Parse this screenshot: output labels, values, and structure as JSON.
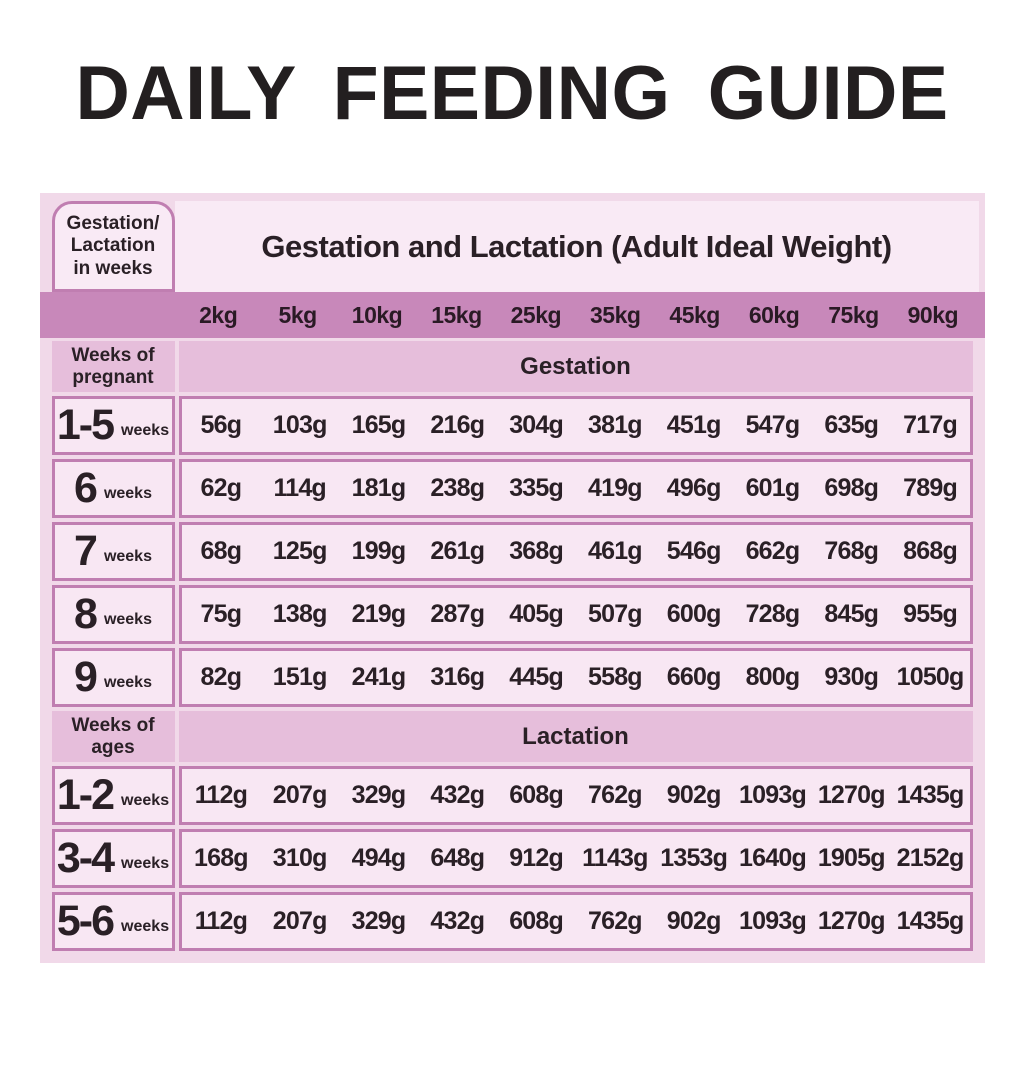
{
  "page_title": "DAILY FEEDING GUIDE",
  "table": {
    "corner_lines": [
      "Gestation/",
      "Lactation",
      "in weeks"
    ],
    "header_title": "Gestation and Lactation (Adult Ideal Weight)",
    "weight_columns": [
      "2kg",
      "5kg",
      "10kg",
      "15kg",
      "25kg",
      "35kg",
      "45kg",
      "60kg",
      "75kg",
      "90kg"
    ],
    "sections": [
      {
        "row_header_lines": [
          "Weeks of",
          "pregnant"
        ],
        "band_label": "Gestation",
        "rows": [
          {
            "weeks": "1-5",
            "unit": "weeks",
            "values": [
              "56g",
              "103g",
              "165g",
              "216g",
              "304g",
              "381g",
              "451g",
              "547g",
              "635g",
              "717g"
            ]
          },
          {
            "weeks": "6",
            "unit": "weeks",
            "values": [
              "62g",
              "114g",
              "181g",
              "238g",
              "335g",
              "419g",
              "496g",
              "601g",
              "698g",
              "789g"
            ]
          },
          {
            "weeks": "7",
            "unit": "weeks",
            "values": [
              "68g",
              "125g",
              "199g",
              "261g",
              "368g",
              "461g",
              "546g",
              "662g",
              "768g",
              "868g"
            ]
          },
          {
            "weeks": "8",
            "unit": "weeks",
            "values": [
              "75g",
              "138g",
              "219g",
              "287g",
              "405g",
              "507g",
              "600g",
              "728g",
              "845g",
              "955g"
            ]
          },
          {
            "weeks": "9",
            "unit": "weeks",
            "values": [
              "82g",
              "151g",
              "241g",
              "316g",
              "445g",
              "558g",
              "660g",
              "800g",
              "930g",
              "1050g"
            ]
          }
        ]
      },
      {
        "row_header_lines": [
          "Weeks of",
          "ages"
        ],
        "band_label": "Lactation",
        "rows": [
          {
            "weeks": "1-2",
            "unit": "weeks",
            "values": [
              "112g",
              "207g",
              "329g",
              "432g",
              "608g",
              "762g",
              "902g",
              "1093g",
              "1270g",
              "1435g"
            ]
          },
          {
            "weeks": "3-4",
            "unit": "weeks",
            "values": [
              "168g",
              "310g",
              "494g",
              "648g",
              "912g",
              "1143g",
              "1353g",
              "1640g",
              "1905g",
              "2152g"
            ]
          },
          {
            "weeks": "5-6",
            "unit": "weeks",
            "values": [
              "112g",
              "207g",
              "329g",
              "432g",
              "608g",
              "762g",
              "902g",
              "1093g",
              "1270g",
              "1435g"
            ]
          }
        ]
      }
    ]
  },
  "colors": {
    "title_text": "#231f20",
    "table_bg": "#f1d9e9",
    "header_bg": "#f9eaf5",
    "weight_band_bg": "#c888ba",
    "section_band_bg": "#e6bedb",
    "cell_bg": "#f8e7f3",
    "cell_border": "#c07eb1",
    "text": "#2a2026"
  }
}
